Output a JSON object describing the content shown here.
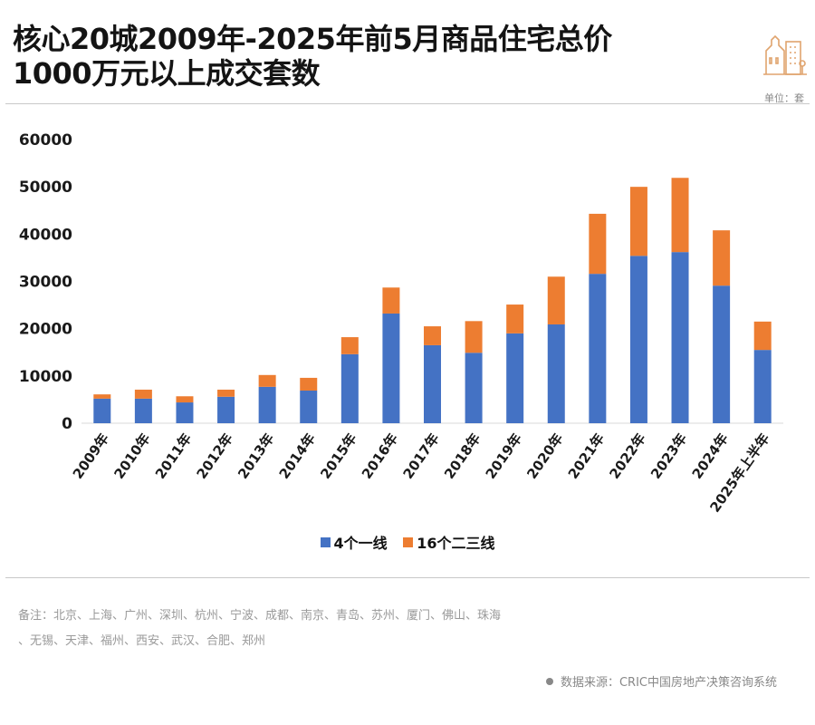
{
  "header": {
    "title_line1": "核心20城2009年-2025年前5月商品住宅总价",
    "title_line2": "1000万元以上成交套数",
    "unit": "单位：套",
    "logo_icon": "buildings-icon"
  },
  "colors": {
    "tier1": "#4472C4",
    "tier23": "#ED7D31",
    "axis": "#d9d9d9"
  },
  "chart_data": {
    "type": "bar",
    "stacked": true,
    "title": "核心20城2009年-2025年前5月商品住宅总价1000万元以上成交套数",
    "xlabel": "",
    "ylabel": "",
    "unit": "套",
    "ylim": [
      0,
      60000
    ],
    "yticks": [
      "0",
      "10000",
      "20000",
      "30000",
      "40000",
      "50000",
      "60000"
    ],
    "grid": false,
    "legend_position": "bottom",
    "categories": [
      "2009年",
      "2010年",
      "2011年",
      "2012年",
      "2013年",
      "2014年",
      "2015年",
      "2016年",
      "2017年",
      "2018年",
      "2019年",
      "2020年",
      "2021年",
      "2022年",
      "2023年",
      "2024年",
      "2025年上半年"
    ],
    "series": [
      {
        "name": "4个一线",
        "values": [
          5200,
          5200,
          4400,
          5600,
          7700,
          6900,
          14600,
          23200,
          16500,
          14900,
          19000,
          20900,
          31600,
          35400,
          36200,
          29100,
          15500
        ]
      },
      {
        "name": "16个二三线",
        "values": [
          900,
          1900,
          1300,
          1500,
          2500,
          2700,
          3600,
          5500,
          4000,
          6700,
          6100,
          10100,
          12700,
          14600,
          15700,
          11700,
          6000
        ]
      }
    ]
  },
  "footer": {
    "note_line1": "备注：北京、上海、广州、深圳、杭州、宁波、成都、南京、青岛、苏州、厦门、佛山、珠海",
    "note_line2": "、无锡、天津、福州、西安、武汉、合肥、郑州",
    "source": "数据来源：CRIC中国房地产决策咨询系统"
  }
}
